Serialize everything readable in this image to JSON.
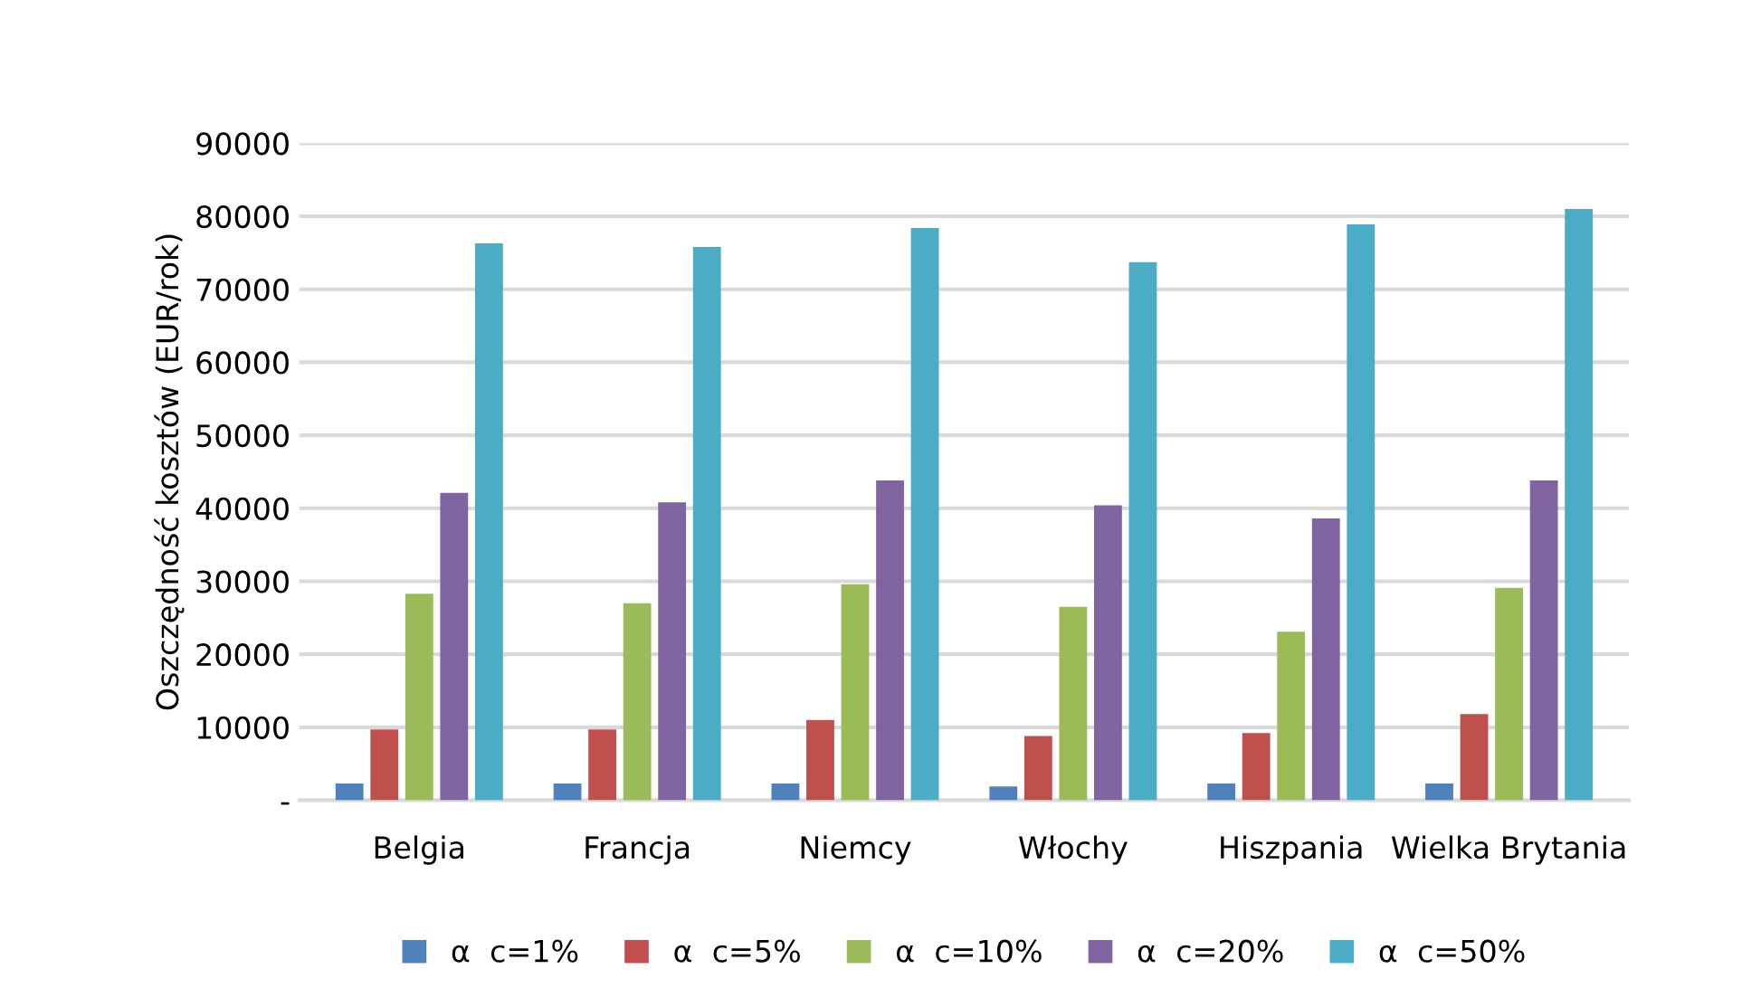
{
  "chart_data": {
    "type": "bar",
    "ylabel": "Oszczędność kosztów (EUR/rok)",
    "categories": [
      "Belgia",
      "Francja",
      "Niemcy",
      "Włochy",
      "Hiszpania",
      "Wielka Brytania"
    ],
    "series": [
      {
        "name": "α  c=1%",
        "color": "#4f81bd",
        "values": [
          2300,
          2300,
          2300,
          1900,
          2300,
          2300
        ]
      },
      {
        "name": "α  c=5%",
        "color": "#c0504d",
        "values": [
          9700,
          9700,
          11000,
          8800,
          9200,
          11800
        ]
      },
      {
        "name": "α  c=10%",
        "color": "#9bbb59",
        "values": [
          28300,
          27000,
          29600,
          26500,
          23100,
          29100
        ]
      },
      {
        "name": "α  c=20%",
        "color": "#8064a2",
        "values": [
          42100,
          40800,
          43800,
          40400,
          38600,
          43800
        ]
      },
      {
        "name": "α  c=50%",
        "color": "#4bacc6",
        "values": [
          76300,
          75800,
          78400,
          73700,
          78900,
          81000
        ]
      }
    ],
    "ylim": [
      0,
      90000
    ],
    "yticks": [
      {
        "value": 0,
        "label": "-"
      },
      10000,
      20000,
      30000,
      40000,
      50000,
      60000,
      70000,
      80000,
      90000
    ],
    "grid": "y",
    "legend": "bottom"
  }
}
